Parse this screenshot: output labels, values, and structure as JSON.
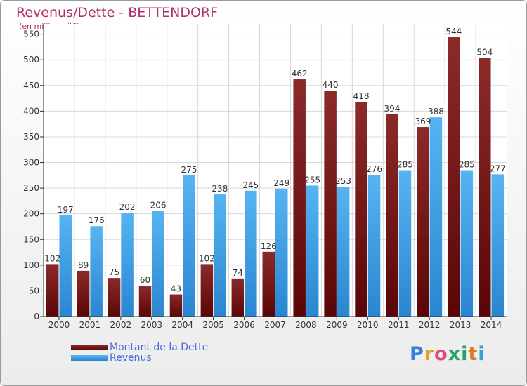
{
  "chart_data": {
    "type": "bar",
    "title": "Revenus/Dette - BETTENDORF",
    "subtitle": "(en milliers d'€)",
    "categories": [
      "2000",
      "2001",
      "2002",
      "2003",
      "2004",
      "2005",
      "2006",
      "2007",
      "2008",
      "2009",
      "2010",
      "2011",
      "2012",
      "2013",
      "2014"
    ],
    "series": [
      {
        "name": "Montant de la Dette",
        "color": "#7a1a1a",
        "values": [
          102,
          89,
          75,
          60,
          43,
          102,
          74,
          126,
          462,
          440,
          418,
          394,
          369,
          544,
          504
        ]
      },
      {
        "name": "Revenus",
        "color": "#3f9fe8",
        "values": [
          197,
          176,
          202,
          206,
          275,
          238,
          245,
          249,
          255,
          253,
          276,
          285,
          388,
          285,
          277
        ]
      }
    ],
    "yticks": [
      0,
      50,
      100,
      150,
      200,
      250,
      300,
      350,
      400,
      450,
      500,
      550
    ],
    "ylim": [
      0,
      570
    ],
    "grid": true,
    "legend_position": "bottom-left"
  },
  "legend": {
    "debt_label": "Montant de la Dette",
    "revenue_label": "Revenus"
  },
  "logo": {
    "letters": [
      "P",
      "r",
      "o",
      "x",
      "i",
      "t",
      "i"
    ],
    "colors": [
      "#3a7fd8",
      "#e0a020",
      "#e04a7a",
      "#2aa06a",
      "#2aa06a",
      "#e07a20",
      "#3a9fd8"
    ]
  }
}
